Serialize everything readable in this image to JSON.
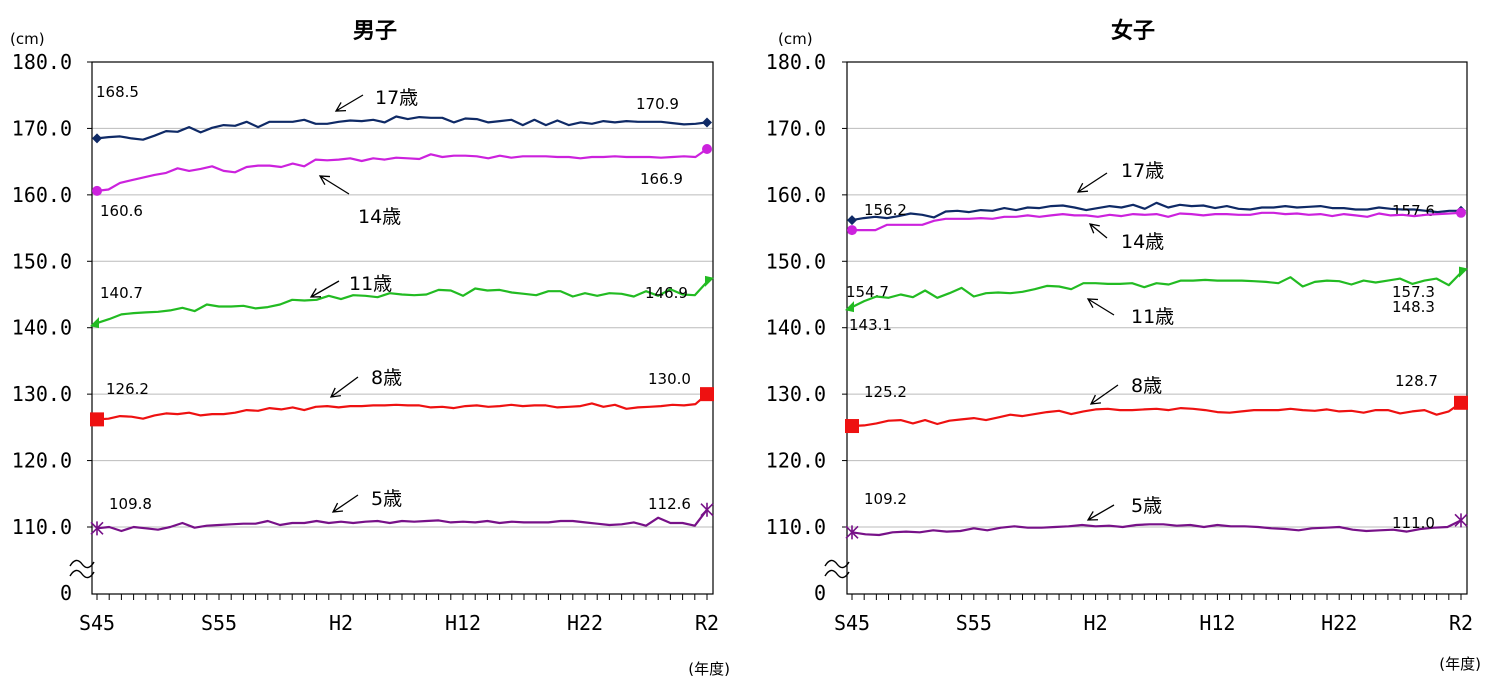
{
  "colors": {
    "age17": "#0f2a66",
    "age14": "#cc22dd",
    "age11": "#22bb22",
    "age8": "#ee1111",
    "age5": "#771188",
    "grid": "#bbbbbb",
    "axis": "#000000"
  },
  "chart_data": [
    {
      "type": "line",
      "title": "男子",
      "unit_label": "(cm)",
      "xlabel": "(年度)",
      "ylim": [
        105,
        180
      ],
      "y_ticks": [
        "180.0",
        "170.0",
        "160.0",
        "150.0",
        "140.0",
        "130.0",
        "120.0",
        "110.0"
      ],
      "y_zero_label": "0",
      "x_tick_labels": [
        "S45",
        "S55",
        "H2",
        "H12",
        "H22",
        "R2"
      ],
      "series": [
        {
          "name": "17歳",
          "color_key": "age17",
          "marker": "diamond",
          "start_label": "168.5",
          "end_label": "170.9",
          "values": [
            168.5,
            168.7,
            168.8,
            168.5,
            168.3,
            168.9,
            169.6,
            169.5,
            170.2,
            169.4,
            170.1,
            170.5,
            170.4,
            171.0,
            170.2,
            171.0,
            171.0,
            171.0,
            171.3,
            170.7,
            170.7,
            171.0,
            171.2,
            171.1,
            171.3,
            170.9,
            171.8,
            171.4,
            171.7,
            171.6,
            171.6,
            170.9,
            171.5,
            171.4,
            170.9,
            171.1,
            171.3,
            170.5,
            171.3,
            170.5,
            171.2,
            170.5,
            170.9,
            170.7,
            171.1,
            170.9,
            171.1,
            171.0,
            171.0,
            171.0,
            170.8,
            170.6,
            170.7,
            170.9
          ]
        },
        {
          "name": "14歳",
          "color_key": "age14",
          "marker": "circle",
          "start_label": "160.6",
          "end_label": "166.9",
          "values": [
            160.6,
            160.8,
            161.8,
            162.2,
            162.6,
            163.0,
            163.3,
            164.0,
            163.6,
            163.9,
            164.3,
            163.6,
            163.4,
            164.2,
            164.4,
            164.4,
            164.2,
            164.7,
            164.3,
            165.3,
            165.2,
            165.3,
            165.5,
            165.1,
            165.5,
            165.3,
            165.6,
            165.5,
            165.4,
            166.1,
            165.7,
            165.9,
            165.9,
            165.8,
            165.5,
            165.9,
            165.6,
            165.8,
            165.8,
            165.8,
            165.7,
            165.7,
            165.5,
            165.7,
            165.7,
            165.8,
            165.7,
            165.7,
            165.7,
            165.6,
            165.7,
            165.8,
            165.7,
            166.9
          ]
        },
        {
          "name": "11歳",
          "color_key": "age11",
          "marker": "triangle",
          "start_label": "140.7",
          "end_label": "146.9",
          "values": [
            140.7,
            141.3,
            142.0,
            142.2,
            142.3,
            142.4,
            142.6,
            143.0,
            142.5,
            143.5,
            143.2,
            143.2,
            143.3,
            142.9,
            143.1,
            143.5,
            144.2,
            144.1,
            144.2,
            144.8,
            144.3,
            144.9,
            144.8,
            144.6,
            145.2,
            145.0,
            144.9,
            145.0,
            145.7,
            145.6,
            144.8,
            145.9,
            145.6,
            145.7,
            145.3,
            145.1,
            144.9,
            145.5,
            145.5,
            144.7,
            145.2,
            144.8,
            145.2,
            145.1,
            144.7,
            145.5,
            144.8,
            145.8,
            145.0,
            144.9,
            146.9
          ]
        },
        {
          "name": "8歳",
          "color_key": "age8",
          "marker": "square",
          "start_label": "126.2",
          "end_label": "130.0",
          "values": [
            126.2,
            126.3,
            126.7,
            126.6,
            126.3,
            126.8,
            127.1,
            127.0,
            127.2,
            126.8,
            127.0,
            127.0,
            127.2,
            127.6,
            127.5,
            127.9,
            127.7,
            128.0,
            127.6,
            128.1,
            128.2,
            128.0,
            128.2,
            128.2,
            128.3,
            128.3,
            128.4,
            128.3,
            128.3,
            128.0,
            128.1,
            127.9,
            128.2,
            128.3,
            128.1,
            128.2,
            128.4,
            128.2,
            128.3,
            128.3,
            128.0,
            128.1,
            128.2,
            128.6,
            128.1,
            128.4,
            127.8,
            128.0,
            128.1,
            128.2,
            128.4,
            128.3,
            128.5,
            130.0
          ]
        },
        {
          "name": "5歳",
          "color_key": "age5",
          "marker": "star",
          "start_label": "109.8",
          "end_label": "112.6",
          "values": [
            109.8,
            110.0,
            109.4,
            110.0,
            109.8,
            109.6,
            110.0,
            110.6,
            109.9,
            110.2,
            110.3,
            110.4,
            110.5,
            110.5,
            110.9,
            110.3,
            110.6,
            110.6,
            110.9,
            110.6,
            110.8,
            110.6,
            110.8,
            110.9,
            110.6,
            110.9,
            110.8,
            110.9,
            111.0,
            110.7,
            110.8,
            110.7,
            110.9,
            110.6,
            110.8,
            110.7,
            110.7,
            110.7,
            110.9,
            110.9,
            110.7,
            110.5,
            110.3,
            110.4,
            110.7,
            110.2,
            111.4,
            110.6,
            110.6,
            110.2,
            112.6
          ]
        }
      ],
      "annotations": [
        "17歳",
        "14歳",
        "11歳",
        "8歳",
        "5歳"
      ]
    },
    {
      "type": "line",
      "title": "女子",
      "unit_label": "(cm)",
      "xlabel": "(年度)",
      "ylim": [
        105,
        180
      ],
      "y_ticks": [
        "180.0",
        "170.0",
        "160.0",
        "150.0",
        "140.0",
        "130.0",
        "120.0",
        "110.0"
      ],
      "y_zero_label": "0",
      "x_tick_labels": [
        "S45",
        "S55",
        "H2",
        "H12",
        "H22",
        "R2"
      ],
      "series": [
        {
          "name": "17歳",
          "color_key": "age17",
          "marker": "diamond",
          "start_label": "156.2",
          "end_label": "157.6",
          "values": [
            156.2,
            156.5,
            156.7,
            156.5,
            156.8,
            157.2,
            157.0,
            156.6,
            157.5,
            157.6,
            157.4,
            157.7,
            157.6,
            158.0,
            157.7,
            158.1,
            158.0,
            158.3,
            158.4,
            158.1,
            157.7,
            158.0,
            158.3,
            158.1,
            158.5,
            157.9,
            158.8,
            158.1,
            158.5,
            158.3,
            158.4,
            158.0,
            158.3,
            157.9,
            157.8,
            158.1,
            158.1,
            158.3,
            158.1,
            158.2,
            158.3,
            158.0,
            158.0,
            157.8,
            157.8,
            158.1,
            157.9,
            157.8,
            157.8,
            157.6,
            157.4,
            157.6,
            157.6
          ]
        },
        {
          "name": "14歳",
          "color_key": "age14",
          "marker": "circle",
          "start_label": "154.7",
          "end_label": "157.3",
          "values": [
            154.7,
            154.7,
            154.7,
            155.5,
            155.5,
            155.5,
            155.5,
            156.1,
            156.4,
            156.4,
            156.4,
            156.5,
            156.4,
            156.7,
            156.7,
            156.9,
            156.7,
            156.9,
            157.1,
            156.9,
            156.9,
            156.7,
            157.0,
            156.8,
            157.1,
            157.0,
            157.1,
            156.7,
            157.2,
            157.1,
            156.9,
            157.1,
            157.1,
            157.0,
            157.0,
            157.3,
            157.3,
            157.1,
            157.2,
            157.0,
            157.1,
            156.8,
            157.1,
            156.9,
            156.7,
            157.2,
            156.9,
            157.0,
            156.8,
            157.0,
            157.1,
            157.2,
            157.3
          ]
        },
        {
          "name": "11歳",
          "color_key": "age11",
          "marker": "triangle",
          "start_label": "143.1",
          "end_label": "148.3",
          "values": [
            143.1,
            144.0,
            144.7,
            144.5,
            145.0,
            144.6,
            145.6,
            144.5,
            145.2,
            146.0,
            144.7,
            145.2,
            145.3,
            145.2,
            145.4,
            145.8,
            146.3,
            146.2,
            145.8,
            146.7,
            146.7,
            146.6,
            146.6,
            146.7,
            146.1,
            146.7,
            146.5,
            147.1,
            147.1,
            147.2,
            147.1,
            147.1,
            147.1,
            147.0,
            146.9,
            146.7,
            147.6,
            146.2,
            146.9,
            147.1,
            147.0,
            146.5,
            147.1,
            146.8,
            147.1,
            147.4,
            146.6,
            147.1,
            147.4,
            146.4,
            148.3
          ]
        },
        {
          "name": "8歳",
          "color_key": "age8",
          "marker": "square",
          "start_label": "125.2",
          "end_label": "128.7",
          "values": [
            125.2,
            125.3,
            125.6,
            126.0,
            126.1,
            125.6,
            126.1,
            125.5,
            126.0,
            126.2,
            126.4,
            126.1,
            126.5,
            126.9,
            126.7,
            127.0,
            127.3,
            127.5,
            127.0,
            127.4,
            127.7,
            127.8,
            127.6,
            127.6,
            127.7,
            127.8,
            127.6,
            127.9,
            127.8,
            127.6,
            127.3,
            127.2,
            127.4,
            127.6,
            127.6,
            127.6,
            127.8,
            127.6,
            127.5,
            127.7,
            127.4,
            127.5,
            127.2,
            127.6,
            127.6,
            127.1,
            127.4,
            127.6,
            126.9,
            127.4,
            128.7
          ]
        },
        {
          "name": "5歳",
          "color_key": "age5",
          "marker": "star",
          "start_label": "109.2",
          "end_label": "111.0",
          "values": [
            109.2,
            108.9,
            108.8,
            109.2,
            109.3,
            109.2,
            109.5,
            109.3,
            109.4,
            109.8,
            109.5,
            109.9,
            110.1,
            109.9,
            109.9,
            110.0,
            110.1,
            110.3,
            110.1,
            110.2,
            110.0,
            110.3,
            110.4,
            110.4,
            110.2,
            110.3,
            110.0,
            110.3,
            110.1,
            110.1,
            110.0,
            109.8,
            109.7,
            109.5,
            109.8,
            109.9,
            110.0,
            109.6,
            109.4,
            109.5,
            109.6,
            109.3,
            109.7,
            109.9,
            110.0,
            111.0
          ]
        }
      ],
      "annotations": [
        "17歳",
        "14歳",
        "11歳",
        "8歳",
        "5歳"
      ]
    }
  ]
}
